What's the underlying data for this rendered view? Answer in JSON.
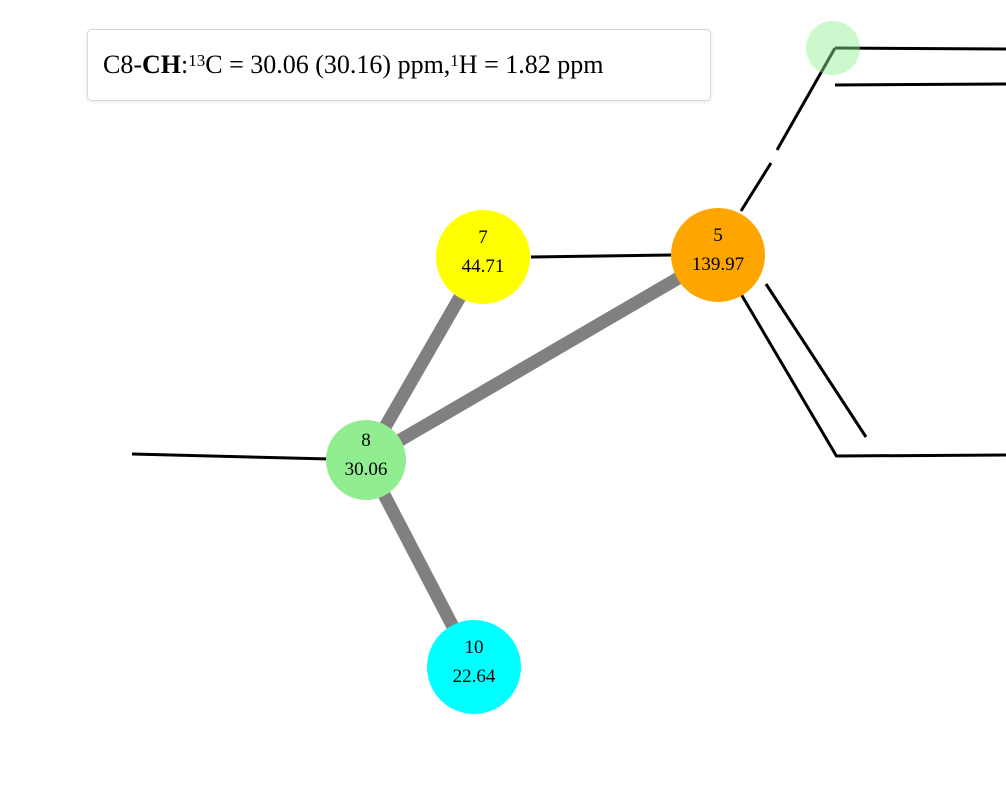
{
  "info": {
    "atom": "C8",
    "sep1": " -",
    "group": "CH",
    "sep2": ": ",
    "c_mass": "13",
    "c_text": "C = 30.06 (30.16) ppm, ",
    "h_mass": "1",
    "h_text": "H = 1.82 ppm"
  },
  "colors": {
    "c5": "#ffa500",
    "c7": "#ffff00",
    "c8": "#90ee90",
    "c10": "#00ffff",
    "correlation": "#808080",
    "bond": "#000000"
  },
  "atoms": [
    {
      "id": "5",
      "number": "5",
      "shift": "139.97",
      "color_key": "c5"
    },
    {
      "id": "7",
      "number": "7",
      "shift": "44.71",
      "color_key": "c7"
    },
    {
      "id": "8",
      "number": "8",
      "shift": "30.06",
      "color_key": "c8"
    },
    {
      "id": "10",
      "number": "10",
      "shift": "22.64",
      "color_key": "c10"
    }
  ],
  "correlations": [
    {
      "from": "8",
      "to": "7"
    },
    {
      "from": "8",
      "to": "5"
    },
    {
      "from": "8",
      "to": "10"
    }
  ]
}
